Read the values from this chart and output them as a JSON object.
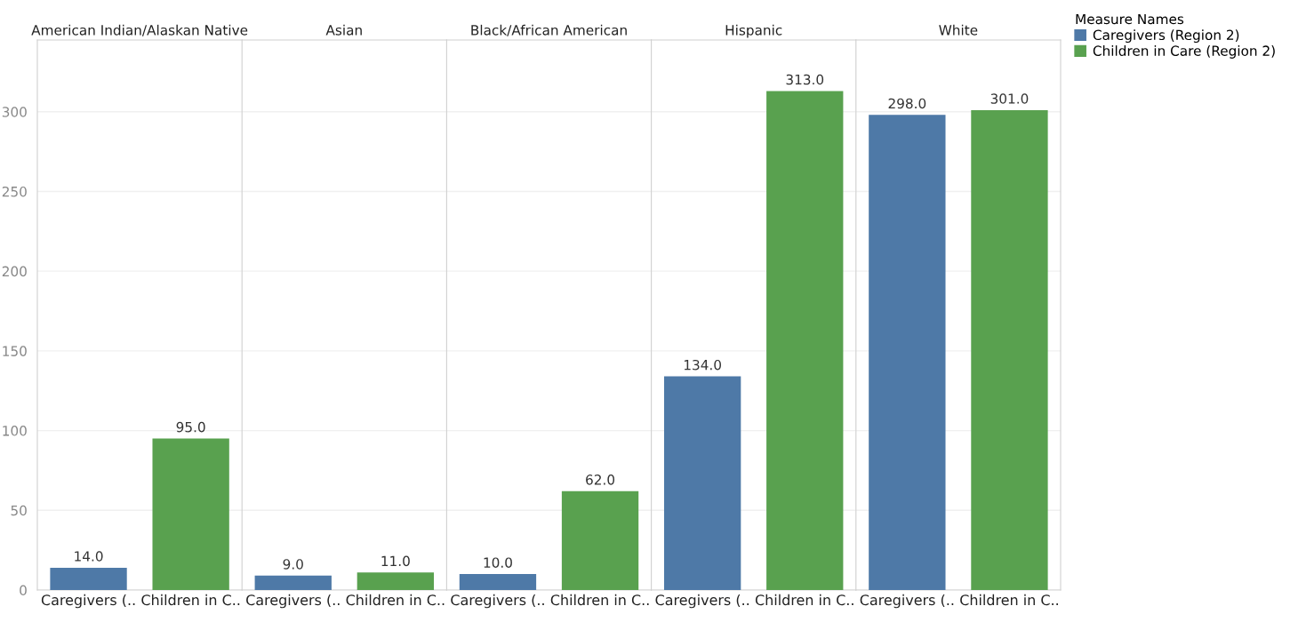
{
  "chart_data": [
    {
      "type": "bar",
      "title": "American Indian/Alaskan Native",
      "categories": [
        "Caregivers (..",
        "Children in C.."
      ],
      "series": [
        {
          "color": "#4e79a7",
          "values": [
            14,
            null
          ],
          "value_labels": [
            "14.0",
            null
          ]
        },
        {
          "color": "#59a14f",
          "values": [
            null,
            95
          ],
          "value_labels": [
            null,
            "95.0"
          ]
        }
      ],
      "ylim": [
        0,
        345
      ],
      "yticks": [
        0,
        50,
        100,
        150,
        200,
        250,
        300
      ],
      "grid": "y"
    },
    {
      "type": "bar",
      "title": "Asian",
      "categories": [
        "Caregivers (..",
        "Children in C.."
      ],
      "series": [
        {
          "color": "#4e79a7",
          "values": [
            9,
            null
          ],
          "value_labels": [
            "9.0",
            null
          ]
        },
        {
          "color": "#59a14f",
          "values": [
            null,
            11
          ],
          "value_labels": [
            null,
            "11.0"
          ]
        }
      ],
      "ylim": [
        0,
        345
      ],
      "yticks": [
        0,
        50,
        100,
        150,
        200,
        250,
        300
      ],
      "grid": "y",
      "tick_labels": "x"
    },
    {
      "type": "bar",
      "title": "Black/African American",
      "categories": [
        "Caregivers (..",
        "Children in C.."
      ],
      "series": [
        {
          "color": "#4e79a7",
          "values": [
            10,
            null
          ],
          "value_labels": [
            "10.0",
            null
          ]
        },
        {
          "color": "#59a14f",
          "values": [
            null,
            62
          ],
          "value_labels": [
            null,
            "62.0"
          ]
        }
      ],
      "ylim": [
        0,
        345
      ],
      "yticks": [
        0,
        50,
        100,
        150,
        200,
        250,
        300
      ],
      "grid": "y",
      "tick_labels": "x"
    },
    {
      "type": "bar",
      "title": "Hispanic",
      "categories": [
        "Caregivers (..",
        "Children in C.."
      ],
      "series": [
        {
          "color": "#4e79a7",
          "values": [
            134,
            null
          ],
          "value_labels": [
            "134.0",
            null
          ]
        },
        {
          "color": "#59a14f",
          "values": [
            null,
            313
          ],
          "value_labels": [
            null,
            "313.0"
          ]
        }
      ],
      "ylim": [
        0,
        345
      ],
      "yticks": [
        0,
        50,
        100,
        150,
        200,
        250,
        300
      ],
      "grid": "y",
      "tick_labels": "x"
    },
    {
      "type": "bar",
      "title": "White",
      "categories": [
        "Caregivers (..",
        "Children in C.."
      ],
      "series": [
        {
          "name": "Caregivers (Region 2)",
          "color": "#4e79a7",
          "values": [
            298,
            null
          ],
          "value_labels": [
            "298.0",
            null
          ]
        },
        {
          "name": "Children in Care (Region 2)",
          "color": "#59a14f",
          "values": [
            null,
            301
          ],
          "value_labels": [
            null,
            "301.0"
          ]
        }
      ],
      "ylim": [
        0,
        345
      ],
      "yticks": [
        0,
        50,
        100,
        150,
        200,
        250,
        300
      ],
      "grid": "y",
      "legend": "right",
      "legend_title": "Measure Names",
      "tick_labels": "x"
    }
  ]
}
